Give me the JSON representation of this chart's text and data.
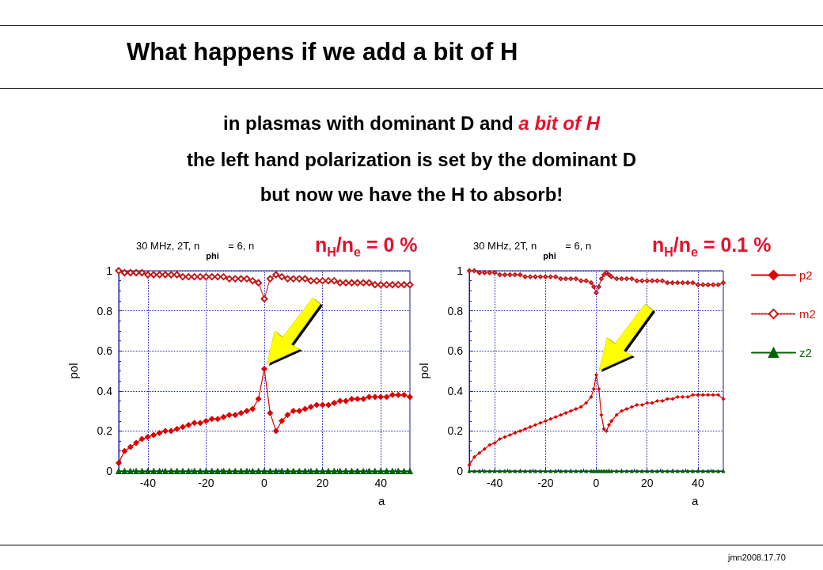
{
  "chart_data": [
    {
      "type": "other",
      "title": "What happens if we add a bit of H",
      "annotations": [
        "in plasmas with dominant D and",
        "a bit of H",
        "the left hand polarization is set by the dominant D",
        "but now we have the H to absorb!",
        "jmn2008.17.70"
      ]
    },
    {
      "type": "line",
      "title": "30 MHz, 2T, n$_{phi}$ = 6,  n",
      "annotations": [
        "n$_{H}$/n$_{e}$ = 0 %"
      ],
      "xlabel": "a",
      "ylabel": "pol",
      "xlim": [
        -50,
        50
      ],
      "xticks": [
        -40,
        -20,
        0,
        20,
        40
      ],
      "ylim": [
        0,
        1
      ],
      "yticks": [
        0,
        0.2,
        0.4,
        0.6,
        0.8,
        1
      ],
      "grid": true,
      "legend": false,
      "x": [
        -50,
        -48,
        -46,
        -44,
        -42,
        -40,
        -38,
        -36,
        -34,
        -32,
        -30,
        -28,
        -26,
        -24,
        -22,
        -20,
        -18,
        -16,
        -14,
        -12,
        -10,
        -8,
        -6,
        -4,
        -2,
        0,
        2,
        4,
        6,
        8,
        10,
        12,
        14,
        16,
        18,
        20,
        22,
        24,
        26,
        28,
        30,
        32,
        34,
        36,
        38,
        40,
        42,
        44,
        46,
        48,
        50
      ],
      "series": [
        {
          "color": "#dd0000",
          "marker": "diamond",
          "line_style": "solid",
          "values": [
            0.04,
            0.1,
            0.12,
            0.14,
            0.16,
            0.17,
            0.18,
            0.19,
            0.2,
            0.2,
            0.21,
            0.22,
            0.23,
            0.24,
            0.24,
            0.25,
            0.26,
            0.26,
            0.27,
            0.28,
            0.28,
            0.29,
            0.3,
            0.31,
            0.36,
            0.51,
            0.29,
            0.2,
            0.25,
            0.28,
            0.3,
            0.3,
            0.31,
            0.32,
            0.33,
            0.33,
            0.33,
            0.34,
            0.35,
            0.35,
            0.36,
            0.36,
            0.36,
            0.37,
            0.37,
            0.37,
            0.37,
            0.38,
            0.38,
            0.38,
            0.37
          ]
        },
        {
          "color": "#c01818",
          "marker": "diamond",
          "line_style": "dotted",
          "values": [
            1,
            0.99,
            0.99,
            0.99,
            0.99,
            0.98,
            0.98,
            0.98,
            0.98,
            0.98,
            0.98,
            0.97,
            0.97,
            0.97,
            0.97,
            0.97,
            0.97,
            0.97,
            0.97,
            0.96,
            0.96,
            0.96,
            0.96,
            0.95,
            0.94,
            0.86,
            0.96,
            0.98,
            0.97,
            0.96,
            0.96,
            0.96,
            0.96,
            0.95,
            0.95,
            0.95,
            0.95,
            0.95,
            0.94,
            0.94,
            0.94,
            0.94,
            0.94,
            0.94,
            0.93,
            0.93,
            0.93,
            0.93,
            0.93,
            0.93,
            0.93
          ]
        },
        {
          "color": "#006400",
          "marker": "triangle",
          "line_style": "solid",
          "values": [
            0,
            0,
            0,
            0,
            0,
            0,
            0,
            0,
            0,
            0,
            0,
            0,
            0,
            0,
            0,
            0,
            0,
            0,
            0,
            0,
            0,
            0,
            0,
            0,
            0,
            0,
            0,
            0,
            0,
            0,
            0,
            0,
            0,
            0,
            0,
            0,
            0,
            0,
            0,
            0,
            0,
            0,
            0,
            0,
            0,
            0,
            0,
            0,
            0,
            0,
            0
          ]
        }
      ]
    },
    {
      "type": "line",
      "title": "30 MHz, 2T, n$_{phi}$ = 6,  n",
      "annotations": [
        "n$_{H}$/n$_{e}$ = 0.1 %"
      ],
      "xlabel": "a",
      "ylabel": "pol",
      "xlim": [
        -50,
        50
      ],
      "xticks": [
        -40,
        -20,
        0,
        20,
        40
      ],
      "ylim": [
        0,
        1
      ],
      "yticks": [
        0,
        0.2,
        0.4,
        0.6,
        0.8,
        1
      ],
      "grid": true,
      "legend": "right",
      "x": [
        -50,
        -48,
        -46,
        -44,
        -42,
        -40,
        -38,
        -36,
        -34,
        -32,
        -30,
        -28,
        -26,
        -24,
        -22,
        -20,
        -18,
        -16,
        -14,
        -12,
        -10,
        -8,
        -6,
        -4,
        -2,
        -1,
        0,
        1,
        2,
        3,
        4,
        5,
        6,
        8,
        10,
        12,
        14,
        16,
        18,
        20,
        22,
        24,
        26,
        28,
        30,
        32,
        34,
        36,
        38,
        40,
        42,
        44,
        46,
        48,
        50
      ],
      "series": [
        {
          "name": "p2",
          "color": "#dd0000",
          "marker": "diamond",
          "line_style": "solid",
          "values": [
            0.03,
            0.07,
            0.09,
            0.11,
            0.13,
            0.14,
            0.16,
            0.17,
            0.18,
            0.19,
            0.2,
            0.21,
            0.22,
            0.23,
            0.24,
            0.25,
            0.26,
            0.27,
            0.28,
            0.29,
            0.3,
            0.31,
            0.32,
            0.34,
            0.37,
            0.41,
            0.48,
            0.41,
            0.28,
            0.21,
            0.2,
            0.23,
            0.25,
            0.28,
            0.3,
            0.31,
            0.32,
            0.33,
            0.33,
            0.34,
            0.34,
            0.35,
            0.35,
            0.36,
            0.36,
            0.37,
            0.37,
            0.37,
            0.38,
            0.38,
            0.38,
            0.38,
            0.38,
            0.38,
            0.36
          ]
        },
        {
          "name": "m2",
          "color": "#c01818",
          "marker": "diamond",
          "line_style": "dotted",
          "values": [
            1,
            1,
            0.99,
            0.99,
            0.99,
            0.99,
            0.98,
            0.98,
            0.98,
            0.98,
            0.98,
            0.97,
            0.97,
            0.97,
            0.97,
            0.97,
            0.97,
            0.97,
            0.96,
            0.96,
            0.96,
            0.96,
            0.95,
            0.95,
            0.94,
            0.92,
            0.89,
            0.92,
            0.96,
            0.98,
            0.99,
            0.98,
            0.97,
            0.96,
            0.96,
            0.96,
            0.96,
            0.95,
            0.95,
            0.95,
            0.95,
            0.95,
            0.95,
            0.94,
            0.94,
            0.94,
            0.94,
            0.94,
            0.94,
            0.93,
            0.93,
            0.93,
            0.93,
            0.93,
            0.94
          ]
        },
        {
          "name": "z2",
          "color": "#006400",
          "marker": "triangle",
          "line_style": "solid",
          "values": [
            0,
            0,
            0,
            0,
            0,
            0,
            0,
            0,
            0,
            0,
            0,
            0,
            0,
            0,
            0,
            0,
            0,
            0,
            0,
            0,
            0,
            0,
            0,
            0,
            0,
            0,
            0,
            0,
            0,
            0,
            0,
            0,
            0,
            0,
            0,
            0,
            0,
            0,
            0,
            0,
            0,
            0,
            0,
            0,
            0,
            0,
            0,
            0,
            0,
            0,
            0,
            0,
            0,
            0,
            0
          ]
        }
      ]
    }
  ]
}
